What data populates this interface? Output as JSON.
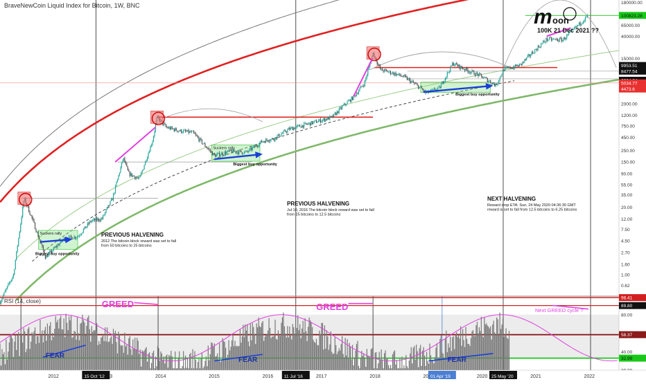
{
  "header": {
    "title": "BraveNewCoin Liquid Index for Bitcoin, 1W, BNC"
  },
  "rsi_panel": {
    "title": "RSI (14, close)"
  },
  "price_axis": {
    "ticks": [
      "180000.00",
      "65000.00",
      "40000.00",
      "15000.00",
      "4500.00",
      "2000.00",
      "1200.00",
      "750.00",
      "450.00",
      "250.00",
      "150.00",
      "90.00",
      "55.00",
      "35.00",
      "20.00",
      "12.00",
      "7.50",
      "4.50",
      "2.70",
      "1.60",
      "1.00",
      "0.62"
    ],
    "badges": [
      {
        "label": "100823.28",
        "value": 100823.28,
        "bg": "#18c818",
        "fg": "#111111"
      },
      {
        "label": "9953.51",
        "value": 9953.51,
        "bg": "#111111",
        "fg": "#ffffff"
      },
      {
        "label": "8477.54",
        "value": 8477.54,
        "bg": "#111111",
        "fg": "#ffffff"
      },
      {
        "label": "6024.64",
        "value": 6024.64,
        "bg": "#111111",
        "fg": "#ffffff"
      },
      {
        "label": "5034.77",
        "value": 5034.77,
        "bg": "#e83030",
        "fg": "#ffffff"
      },
      {
        "label": "4473.6",
        "value": 4473.6,
        "bg": "#e83030",
        "fg": "#ffffff"
      }
    ]
  },
  "rsi_axis": {
    "ticks": [
      "80.00",
      "60.00",
      "40.00",
      "20.00"
    ],
    "badges": [
      {
        "label": "98.41",
        "value": 98.41,
        "bg": "#d22020",
        "fg": "#ffffff"
      },
      {
        "label": "89.80",
        "value": 89.8,
        "bg": "#111111",
        "fg": "#ffffff"
      },
      {
        "label": "58.37",
        "value": 58.37,
        "bg": "#8b1a1a",
        "fg": "#ffffff"
      },
      {
        "label": "32.99",
        "value": 32.99,
        "bg": "#18c818",
        "fg": "#111111"
      }
    ]
  },
  "time_axis": {
    "labels": [
      "2012",
      "2013",
      "2014",
      "2015",
      "2016",
      "2017",
      "2018",
      "2019",
      "2020",
      "2021",
      "2022"
    ],
    "highlights": [
      {
        "label": "15 Oct '12",
        "bg": "#111111",
        "fg": "#ffffff"
      },
      {
        "label": "11 Jul '16",
        "bg": "#111111",
        "fg": "#ffffff"
      },
      {
        "label": "01 Apr '19",
        "bg": "#4a7fd4",
        "fg": "#ffffff"
      },
      {
        "label": "25 May '20",
        "bg": "#111111",
        "fg": "#ffffff"
      }
    ]
  },
  "annotations": {
    "suckers_rally": "Suckers rally",
    "biggest_buy": "Biggest buy opportunity",
    "prev_halving_1_title": "PREVIOUS HALVENING",
    "prev_halving_1_body": [
      "2012 The bitcoin block reward was set to fall",
      "from 50 bitcoins to 25 bitcoins"
    ],
    "prev_halving_2_title": "PREVIOUS HALVENING",
    "prev_halving_2_body": [
      "Jul 10, 2016 The bitcoin block reward was set to fall",
      "from 25 bitcoins to 12.5 bitcoins"
    ],
    "next_halving_title": "NEXT HALVENING",
    "next_halving_body": [
      "Reward drop ETA: Sun, 24 May 2020 04:36:30 GMT",
      "reward is set to fall from 12.5 bitcoins to 6.25 bitcoins"
    ],
    "moon_prediction": "100K 21 Dec 2021 ??",
    "greed": "GREED",
    "fear": "FEAR",
    "next_greed": "Next GREED cycle ?"
  },
  "colors": {
    "bull": "#26a69a",
    "bear": "#555555",
    "red_curve": "#e02020",
    "green_curve": "#7fb86a",
    "magenta": "#e040e0",
    "blue_arrow": "#1a3fd8"
  },
  "chart_data": [
    {
      "type": "line",
      "title": "BraveNewCoin Liquid Index for Bitcoin, 1W, BNC",
      "scale": "log",
      "ylim": [
        0.4,
        200000
      ],
      "x_range": [
        "2011-01",
        "2022-07"
      ],
      "series": [
        {
          "values_x": [
            "2011-01",
            "2011-06",
            "2011-11",
            "2012-06",
            "2012-11",
            "2013-04",
            "2013-07",
            "2013-12",
            "2014-06",
            "2015-01",
            "2015-08",
            "2016-06",
            "2016-12",
            "2017-06",
            "2017-12",
            "2018-06",
            "2018-12",
            "2019-06",
            "2019-12",
            "2020-03",
            "2020-05",
            "2021-06",
            "2021-12"
          ],
          "values": [
            0.3,
            30,
            2.2,
            5.5,
            11,
            180,
            70,
            1100,
            600,
            200,
            230,
            650,
            900,
            2500,
            19000,
            6500,
            3200,
            12000,
            7000,
            4500,
            9200,
            30000,
            100000
          ]
        }
      ],
      "annotated_levels": [
        100823.28,
        9953.51,
        8477.54,
        6024.64,
        5034.77,
        4473.6
      ]
    },
    {
      "type": "line",
      "title": "RSI (14, close)",
      "ylim": [
        20,
        100
      ],
      "reference_levels": [
        98.41,
        89.8,
        58.37,
        32.99
      ]
    }
  ]
}
